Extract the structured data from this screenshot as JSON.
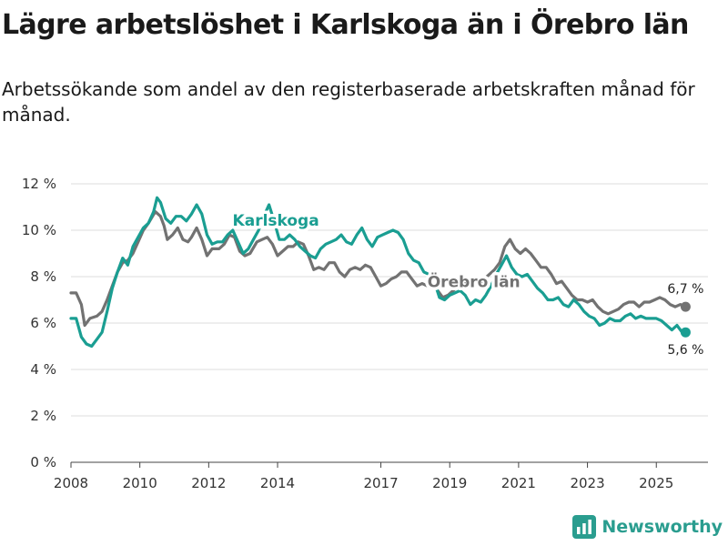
{
  "page": {
    "title": "Lägre arbetslöshet i Karlskoga än i Örebro län",
    "subtitle": "Arbetssökande som andel av den registerbaserade arbetskraften månad för månad."
  },
  "brand": {
    "name": "Newsworthy",
    "icon": "newsworthy-logo-icon",
    "color": "#2a9d8f"
  },
  "colors": {
    "karlskoga": "#1a9e92",
    "orebro": "#727272",
    "grid": "#dddddd",
    "axis": "#444444"
  },
  "chart_data": {
    "type": "line",
    "title": "Lägre arbetslöshet i Karlskoga än i Örebro län",
    "xlabel": "",
    "ylabel": "",
    "xlim": [
      2008,
      2026.5
    ],
    "ylim": [
      0,
      12
    ],
    "x_ticks": [
      {
        "value": 2008,
        "label": "2008"
      },
      {
        "value": 2010,
        "label": "2010"
      },
      {
        "value": 2012,
        "label": "2012"
      },
      {
        "value": 2014,
        "label": "2014"
      },
      {
        "value": 2017,
        "label": "2017"
      },
      {
        "value": 2019,
        "label": "2019"
      },
      {
        "value": 2021,
        "label": "2021"
      },
      {
        "value": 2023,
        "label": "2023"
      },
      {
        "value": 2025,
        "label": "2025"
      }
    ],
    "y_ticks": [
      {
        "value": 0,
        "label": "0 %"
      },
      {
        "value": 2,
        "label": "2 %"
      },
      {
        "value": 4,
        "label": "4 %"
      },
      {
        "value": 6,
        "label": "6 %"
      },
      {
        "value": 8,
        "label": "8 %"
      },
      {
        "value": 10,
        "label": "10 %"
      },
      {
        "value": 12,
        "label": "12 %"
      }
    ],
    "series": [
      {
        "name": "Örebro län",
        "color_key": "orebro",
        "end_label": "6,7 %",
        "points": [
          [
            2008.0,
            7.3
          ],
          [
            2008.15,
            7.3
          ],
          [
            2008.3,
            6.8
          ],
          [
            2008.4,
            5.9
          ],
          [
            2008.55,
            6.2
          ],
          [
            2008.75,
            6.3
          ],
          [
            2008.9,
            6.5
          ],
          [
            2009.05,
            7.0
          ],
          [
            2009.2,
            7.6
          ],
          [
            2009.35,
            8.2
          ],
          [
            2009.5,
            8.6
          ],
          [
            2009.65,
            8.7
          ],
          [
            2009.8,
            9.0
          ],
          [
            2009.95,
            9.5
          ],
          [
            2010.1,
            10.0
          ],
          [
            2010.25,
            10.3
          ],
          [
            2010.45,
            10.8
          ],
          [
            2010.6,
            10.6
          ],
          [
            2010.7,
            10.2
          ],
          [
            2010.8,
            9.6
          ],
          [
            2010.95,
            9.8
          ],
          [
            2011.1,
            10.1
          ],
          [
            2011.25,
            9.6
          ],
          [
            2011.4,
            9.5
          ],
          [
            2011.5,
            9.7
          ],
          [
            2011.65,
            10.1
          ],
          [
            2011.8,
            9.6
          ],
          [
            2011.95,
            8.9
          ],
          [
            2012.1,
            9.2
          ],
          [
            2012.3,
            9.2
          ],
          [
            2012.45,
            9.4
          ],
          [
            2012.6,
            9.8
          ],
          [
            2012.75,
            9.7
          ],
          [
            2012.9,
            9.1
          ],
          [
            2013.05,
            8.9
          ],
          [
            2013.2,
            9.0
          ],
          [
            2013.4,
            9.5
          ],
          [
            2013.55,
            9.6
          ],
          [
            2013.7,
            9.7
          ],
          [
            2013.85,
            9.4
          ],
          [
            2014.0,
            8.9
          ],
          [
            2014.15,
            9.1
          ],
          [
            2014.3,
            9.3
          ],
          [
            2014.45,
            9.3
          ],
          [
            2014.6,
            9.5
          ],
          [
            2014.75,
            9.4
          ],
          [
            2014.9,
            8.9
          ],
          [
            2015.05,
            8.3
          ],
          [
            2015.2,
            8.4
          ],
          [
            2015.35,
            8.3
          ],
          [
            2015.5,
            8.6
          ],
          [
            2015.65,
            8.6
          ],
          [
            2015.8,
            8.2
          ],
          [
            2015.95,
            8.0
          ],
          [
            2016.1,
            8.3
          ],
          [
            2016.25,
            8.4
          ],
          [
            2016.4,
            8.3
          ],
          [
            2016.55,
            8.5
          ],
          [
            2016.7,
            8.4
          ],
          [
            2016.85,
            8.0
          ],
          [
            2017.0,
            7.6
          ],
          [
            2017.15,
            7.7
          ],
          [
            2017.3,
            7.9
          ],
          [
            2017.45,
            8.0
          ],
          [
            2017.6,
            8.2
          ],
          [
            2017.75,
            8.2
          ],
          [
            2017.9,
            7.9
          ],
          [
            2018.05,
            7.6
          ],
          [
            2018.2,
            7.7
          ],
          [
            2018.35,
            7.6
          ],
          [
            2018.5,
            7.7
          ],
          [
            2018.65,
            7.4
          ],
          [
            2018.8,
            7.1
          ],
          [
            2018.95,
            7.2
          ],
          [
            2019.1,
            7.4
          ],
          [
            2019.25,
            7.6
          ],
          [
            2019.4,
            7.8
          ],
          [
            2019.55,
            7.7
          ],
          [
            2019.7,
            7.5
          ],
          [
            2019.85,
            7.7
          ],
          [
            2020.0,
            7.9
          ],
          [
            2020.15,
            8.1
          ],
          [
            2020.3,
            8.3
          ],
          [
            2020.45,
            8.6
          ],
          [
            2020.6,
            9.3
          ],
          [
            2020.75,
            9.6
          ],
          [
            2020.9,
            9.2
          ],
          [
            2021.05,
            9.0
          ],
          [
            2021.2,
            9.2
          ],
          [
            2021.35,
            9.0
          ],
          [
            2021.5,
            8.7
          ],
          [
            2021.65,
            8.4
          ],
          [
            2021.8,
            8.4
          ],
          [
            2021.95,
            8.1
          ],
          [
            2022.1,
            7.7
          ],
          [
            2022.25,
            7.8
          ],
          [
            2022.4,
            7.5
          ],
          [
            2022.55,
            7.2
          ],
          [
            2022.7,
            7.0
          ],
          [
            2022.85,
            7.0
          ],
          [
            2023.0,
            6.9
          ],
          [
            2023.15,
            7.0
          ],
          [
            2023.3,
            6.7
          ],
          [
            2023.45,
            6.5
          ],
          [
            2023.6,
            6.4
          ],
          [
            2023.75,
            6.5
          ],
          [
            2023.9,
            6.6
          ],
          [
            2024.05,
            6.8
          ],
          [
            2024.2,
            6.9
          ],
          [
            2024.35,
            6.9
          ],
          [
            2024.5,
            6.7
          ],
          [
            2024.65,
            6.9
          ],
          [
            2024.8,
            6.9
          ],
          [
            2024.95,
            7.0
          ],
          [
            2025.1,
            7.1
          ],
          [
            2025.25,
            7.0
          ],
          [
            2025.4,
            6.8
          ],
          [
            2025.55,
            6.7
          ],
          [
            2025.7,
            6.8
          ],
          [
            2025.85,
            6.7
          ]
        ]
      },
      {
        "name": "Karlskoga",
        "color_key": "karlskoga",
        "end_label": "5,6 %",
        "points": [
          [
            2008.0,
            6.2
          ],
          [
            2008.15,
            6.2
          ],
          [
            2008.3,
            5.4
          ],
          [
            2008.45,
            5.1
          ],
          [
            2008.6,
            5.0
          ],
          [
            2008.75,
            5.3
          ],
          [
            2008.9,
            5.6
          ],
          [
            2009.05,
            6.5
          ],
          [
            2009.2,
            7.5
          ],
          [
            2009.35,
            8.2
          ],
          [
            2009.5,
            8.8
          ],
          [
            2009.65,
            8.5
          ],
          [
            2009.8,
            9.3
          ],
          [
            2009.95,
            9.7
          ],
          [
            2010.1,
            10.1
          ],
          [
            2010.25,
            10.3
          ],
          [
            2010.4,
            10.8
          ],
          [
            2010.5,
            11.4
          ],
          [
            2010.6,
            11.2
          ],
          [
            2010.75,
            10.5
          ],
          [
            2010.9,
            10.3
          ],
          [
            2011.05,
            10.6
          ],
          [
            2011.2,
            10.6
          ],
          [
            2011.35,
            10.4
          ],
          [
            2011.5,
            10.7
          ],
          [
            2011.65,
            11.1
          ],
          [
            2011.8,
            10.7
          ],
          [
            2011.95,
            9.8
          ],
          [
            2012.1,
            9.4
          ],
          [
            2012.25,
            9.5
          ],
          [
            2012.4,
            9.5
          ],
          [
            2012.55,
            9.8
          ],
          [
            2012.7,
            10.0
          ],
          [
            2012.85,
            9.5
          ],
          [
            2013.0,
            9.0
          ],
          [
            2013.15,
            9.2
          ],
          [
            2013.3,
            9.6
          ],
          [
            2013.45,
            10.0
          ],
          [
            2013.6,
            10.6
          ],
          [
            2013.75,
            11.1
          ],
          [
            2013.9,
            10.4
          ],
          [
            2014.05,
            9.6
          ],
          [
            2014.2,
            9.6
          ],
          [
            2014.35,
            9.8
          ],
          [
            2014.5,
            9.6
          ],
          [
            2014.65,
            9.3
          ],
          [
            2014.8,
            9.1
          ],
          [
            2014.95,
            8.9
          ],
          [
            2015.1,
            8.8
          ],
          [
            2015.25,
            9.2
          ],
          [
            2015.4,
            9.4
          ],
          [
            2015.55,
            9.5
          ],
          [
            2015.7,
            9.6
          ],
          [
            2015.85,
            9.8
          ],
          [
            2016.0,
            9.5
          ],
          [
            2016.15,
            9.4
          ],
          [
            2016.3,
            9.8
          ],
          [
            2016.45,
            10.1
          ],
          [
            2016.6,
            9.6
          ],
          [
            2016.75,
            9.3
          ],
          [
            2016.9,
            9.7
          ],
          [
            2017.05,
            9.8
          ],
          [
            2017.2,
            9.9
          ],
          [
            2017.35,
            10.0
          ],
          [
            2017.5,
            9.9
          ],
          [
            2017.65,
            9.6
          ],
          [
            2017.8,
            9.0
          ],
          [
            2017.95,
            8.7
          ],
          [
            2018.1,
            8.6
          ],
          [
            2018.25,
            8.2
          ],
          [
            2018.4,
            8.1
          ],
          [
            2018.55,
            7.8
          ],
          [
            2018.7,
            7.1
          ],
          [
            2018.85,
            7.0
          ],
          [
            2019.0,
            7.2
          ],
          [
            2019.15,
            7.3
          ],
          [
            2019.3,
            7.4
          ],
          [
            2019.45,
            7.2
          ],
          [
            2019.6,
            6.8
          ],
          [
            2019.75,
            7.0
          ],
          [
            2019.9,
            6.9
          ],
          [
            2020.05,
            7.2
          ],
          [
            2020.2,
            7.6
          ],
          [
            2020.35,
            8.1
          ],
          [
            2020.5,
            8.5
          ],
          [
            2020.65,
            8.9
          ],
          [
            2020.8,
            8.4
          ],
          [
            2020.95,
            8.1
          ],
          [
            2021.1,
            8.0
          ],
          [
            2021.25,
            8.1
          ],
          [
            2021.4,
            7.8
          ],
          [
            2021.55,
            7.5
          ],
          [
            2021.7,
            7.3
          ],
          [
            2021.85,
            7.0
          ],
          [
            2022.0,
            7.0
          ],
          [
            2022.15,
            7.1
          ],
          [
            2022.3,
            6.8
          ],
          [
            2022.45,
            6.7
          ],
          [
            2022.6,
            7.0
          ],
          [
            2022.75,
            6.8
          ],
          [
            2022.9,
            6.5
          ],
          [
            2023.05,
            6.3
          ],
          [
            2023.2,
            6.2
          ],
          [
            2023.35,
            5.9
          ],
          [
            2023.5,
            6.0
          ],
          [
            2023.65,
            6.2
          ],
          [
            2023.8,
            6.1
          ],
          [
            2023.95,
            6.1
          ],
          [
            2024.1,
            6.3
          ],
          [
            2024.25,
            6.4
          ],
          [
            2024.4,
            6.2
          ],
          [
            2024.55,
            6.3
          ],
          [
            2024.7,
            6.2
          ],
          [
            2024.85,
            6.2
          ],
          [
            2025.0,
            6.2
          ],
          [
            2025.15,
            6.1
          ],
          [
            2025.3,
            5.9
          ],
          [
            2025.45,
            5.7
          ],
          [
            2025.6,
            5.9
          ],
          [
            2025.75,
            5.6
          ],
          [
            2025.85,
            5.6
          ]
        ]
      }
    ],
    "annotations": [
      {
        "text": "Karlskoga",
        "series": "Karlskoga",
        "x": 2013.95,
        "y": 10.2
      },
      {
        "text": "Örebro län",
        "series": "Örebro län",
        "x": 2019.7,
        "y": 7.55
      }
    ]
  }
}
